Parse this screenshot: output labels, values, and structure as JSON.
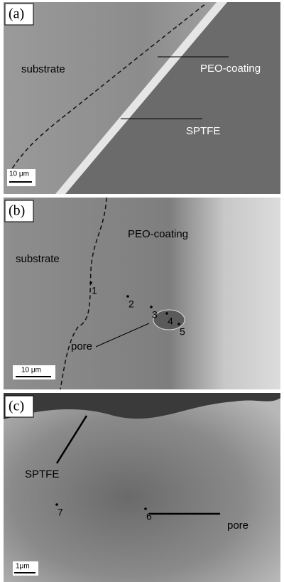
{
  "panels": [
    {
      "label": "(a)",
      "texts": [
        "substrate",
        "PEO-coating",
        "SPTFE"
      ],
      "scale_bar": "10 μm"
    },
    {
      "label": "(b)",
      "texts": [
        "substrate",
        "PEO-coating",
        "pore"
      ],
      "points": [
        "1",
        "2",
        "3",
        "4",
        "5"
      ],
      "scale_bar": "10 μm"
    },
    {
      "label": "(c)",
      "texts": [
        "SPTFE",
        "pore"
      ],
      "points": [
        "7",
        "6"
      ],
      "scale_bar": "1μm"
    }
  ]
}
